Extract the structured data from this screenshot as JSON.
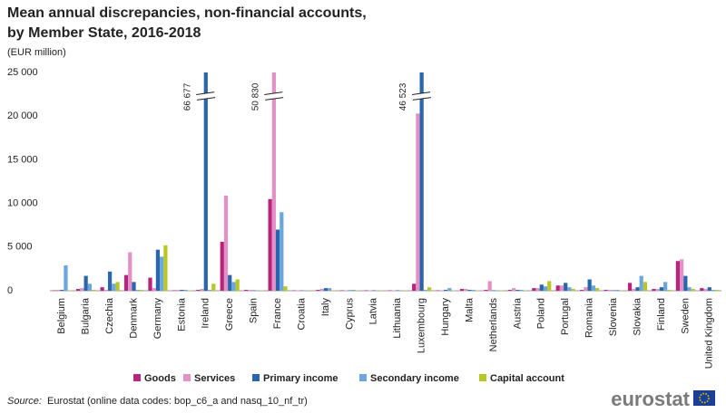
{
  "chart_data": {
    "type": "bar",
    "title": [
      "Mean annual discrepancies, non-financial accounts,",
      "by Member State, 2016-2018"
    ],
    "subtitle": "(EUR million)",
    "categories": [
      "Belgium",
      "Bulgaria",
      "Czechia",
      "Denmark",
      "Germany",
      "Estonia",
      "Ireland",
      "Greece",
      "Spain",
      "France",
      "Croatia",
      "Italy",
      "Cyprus",
      "Latvia",
      "Lithuania",
      "Luxembourg",
      "Hungary",
      "Malta",
      "Netherlands",
      "Austria",
      "Poland",
      "Portugal",
      "Romania",
      "Slovenia",
      "Slovakia",
      "Finland",
      "Sweden",
      "United Kingdom"
    ],
    "series": [
      {
        "name": "Goods",
        "color": "#b8237c",
        "values": [
          50,
          200,
          400,
          1800,
          1500,
          50,
          100,
          5600,
          100,
          10500,
          30,
          100,
          50,
          50,
          50,
          800,
          50,
          200,
          100,
          100,
          300,
          600,
          100,
          100,
          900,
          200,
          3400,
          300
        ]
      },
      {
        "name": "Services",
        "color": "#e290c6",
        "values": [
          100,
          300,
          100,
          4400,
          300,
          100,
          200,
          10900,
          100,
          50830,
          50,
          200,
          50,
          50,
          50,
          20300,
          50,
          200,
          1100,
          300,
          300,
          600,
          400,
          100,
          200,
          200,
          3600,
          200
        ],
        "value_labels": [
          null,
          null,
          null,
          null,
          null,
          null,
          null,
          null,
          null,
          "50 830",
          null,
          null,
          null,
          null,
          null,
          null,
          null,
          null,
          null,
          null,
          null,
          null,
          null,
          null,
          null,
          null,
          null,
          null
        ]
      },
      {
        "name": "Primary income",
        "color": "#2a66ab",
        "values": [
          100,
          1700,
          2200,
          1000,
          4700,
          100,
          66677,
          1800,
          50,
          7000,
          30,
          300,
          50,
          50,
          50,
          46523,
          100,
          100,
          50,
          100,
          700,
          900,
          1300,
          50,
          400,
          400,
          1700,
          400
        ],
        "value_labels": [
          null,
          null,
          null,
          null,
          null,
          null,
          "66 677",
          null,
          null,
          null,
          null,
          null,
          null,
          null,
          null,
          "46 523",
          null,
          null,
          null,
          null,
          null,
          null,
          null,
          null,
          null,
          null,
          null,
          null
        ]
      },
      {
        "name": "Secondary income",
        "color": "#6ba7de",
        "values": [
          2900,
          800,
          800,
          100,
          3900,
          100,
          100,
          1000,
          50,
          9000,
          30,
          300,
          100,
          50,
          50,
          100,
          300,
          100,
          50,
          100,
          500,
          400,
          600,
          100,
          1700,
          1000,
          400,
          100
        ]
      },
      {
        "name": "Capital account",
        "color": "#b8c724",
        "values": [
          50,
          100,
          1000,
          100,
          5200,
          50,
          800,
          1300,
          50,
          500,
          20,
          50,
          50,
          50,
          50,
          400,
          50,
          50,
          50,
          50,
          1100,
          200,
          300,
          50,
          1000,
          100,
          200,
          100
        ]
      }
    ],
    "ylim": [
      0,
      25000
    ],
    "yticks": [
      0,
      {
        "value": 5000,
        "label": "5 000"
      },
      {
        "value": 10000,
        "label": "10 000"
      },
      {
        "value": 15000,
        "label": "15 000"
      },
      {
        "value": 20000,
        "label": "20 000"
      },
      {
        "value": 25000,
        "label": "25 000"
      }
    ],
    "grid": false,
    "source_label": "Source:",
    "source": "Eurostat (online data codes: bop_c6_a and nasq_10_nf_tr)",
    "logo": "eurostat"
  }
}
